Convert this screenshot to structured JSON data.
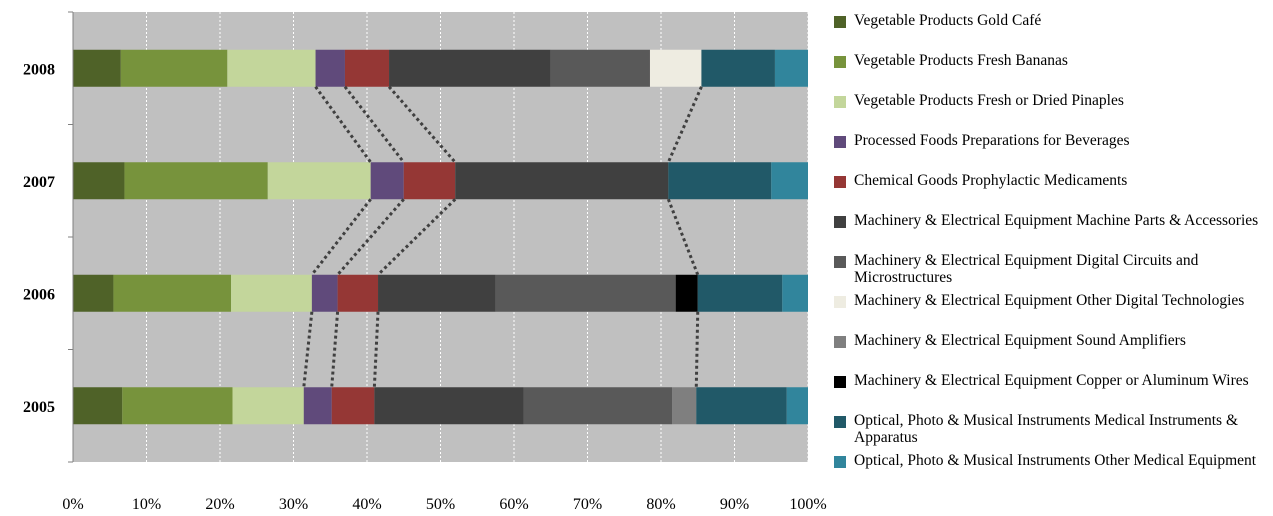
{
  "chart_data": {
    "type": "bar",
    "orientation": "horizontal",
    "stacked": "percent",
    "categories": [
      "2008",
      "2007",
      "2006",
      "2005"
    ],
    "x_ticks": [
      "0%",
      "10%",
      "20%",
      "30%",
      "40%",
      "50%",
      "60%",
      "70%",
      "80%",
      "90%",
      "100%"
    ],
    "xlim": [
      0,
      100
    ],
    "grid": "vertical dotted",
    "legend_position": "right",
    "series": [
      {
        "name": "Vegetable Products Gold Café",
        "color": "#4f6228",
        "values": [
          6.5,
          7.0,
          5.5,
          6.7
        ]
      },
      {
        "name": "Vegetable Products Fresh Bananas",
        "color": "#77933c",
        "values": [
          14.5,
          19.5,
          16.0,
          15.0
        ]
      },
      {
        "name": "Vegetable Products Fresh or Dried Pinaples",
        "color": "#c3d69b",
        "values": [
          12.0,
          14.0,
          11.0,
          9.7
        ]
      },
      {
        "name": "Processed Foods Preparations for Beverages",
        "color": "#604a7b",
        "values": [
          4.0,
          4.5,
          3.5,
          3.8
        ]
      },
      {
        "name": "Chemical Goods Prophylactic Medicaments",
        "color": "#953735",
        "values": [
          6.0,
          7.0,
          5.5,
          5.8
        ]
      },
      {
        "name": "Machinery & Electrical Equipment Machine Parts & Accessories",
        "color": "#404040",
        "values": [
          22.0,
          29.0,
          16.0,
          20.3
        ]
      },
      {
        "name": "Machinery & Electrical Equipment Digital Circuits and Microstructures",
        "color": "#595959",
        "values": [
          13.5,
          0,
          24.5,
          20.2
        ]
      },
      {
        "name": "Machinery & Electrical Equipment Other Digital Technologies",
        "color": "#eeece1",
        "values": [
          7.0,
          0,
          0,
          0
        ]
      },
      {
        "name": "Machinery & Electrical Equipment Sound Amplifiers",
        "color": "#7f7f7f",
        "values": [
          0,
          0,
          0,
          3.3
        ]
      },
      {
        "name": "Machinery & Electrical Equipment Copper or Aluminum Wires",
        "color": "#000000",
        "values": [
          0,
          0,
          3.0,
          0
        ]
      },
      {
        "name": "Optical, Photo & Musical Instruments Medical Instruments & Apparatus",
        "color": "#215968",
        "values": [
          10.0,
          14.0,
          11.5,
          12.3
        ]
      },
      {
        "name": "Optical, Photo & Musical Instruments Other Medical Equipment",
        "color": "#31859c",
        "values": [
          4.5,
          5.0,
          3.5,
          2.9
        ]
      }
    ],
    "connector_boundaries_after_series_index": [
      2,
      3,
      4,
      9
    ]
  }
}
